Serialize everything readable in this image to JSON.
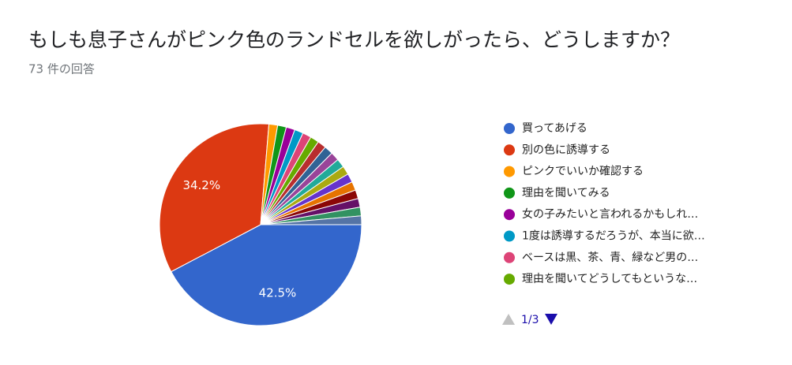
{
  "chart_data": {
    "type": "pie",
    "title": "もしも息子さんがピンク色のランドセルを欲しがったら、どうしますか？",
    "subtitle": "73 件の回答",
    "categories": [
      "買ってあげる",
      "別の色に誘導する",
      "ピンクでいいか確認する",
      "理由を聞いてみる",
      "女の子みたいと言われるかもしれ…",
      "1度は誘導するだろうが、本当に欲…",
      "ベースは黒、茶、青、緑など男の…",
      "理由を聞いてどうしてもというな…",
      null,
      null,
      null,
      null,
      null,
      null,
      null,
      null,
      null,
      null,
      null
    ],
    "values": [
      42.5,
      34.2,
      1.4,
      1.4,
      1.4,
      1.4,
      1.4,
      1.4,
      1.4,
      1.4,
      1.4,
      1.4,
      1.4,
      1.4,
      1.4,
      1.4,
      1.4,
      1.4,
      1.4
    ],
    "value_labels": [
      "42.5%",
      "34.2%",
      null,
      null,
      null,
      null,
      null,
      null,
      null,
      null,
      null,
      null,
      null,
      null,
      null,
      null,
      null,
      null,
      null
    ],
    "colors": [
      "#3366cc",
      "#dc3912",
      "#ff9900",
      "#109618",
      "#990099",
      "#0099c6",
      "#dd4477",
      "#66aa00",
      "#b82e2e",
      "#316395",
      "#994499",
      "#22aa99",
      "#aaaa11",
      "#6633cc",
      "#e67300",
      "#8b0707",
      "#651067",
      "#329262",
      "#5574a6"
    ],
    "legend_page": "1/3",
    "legend_position": "right"
  }
}
